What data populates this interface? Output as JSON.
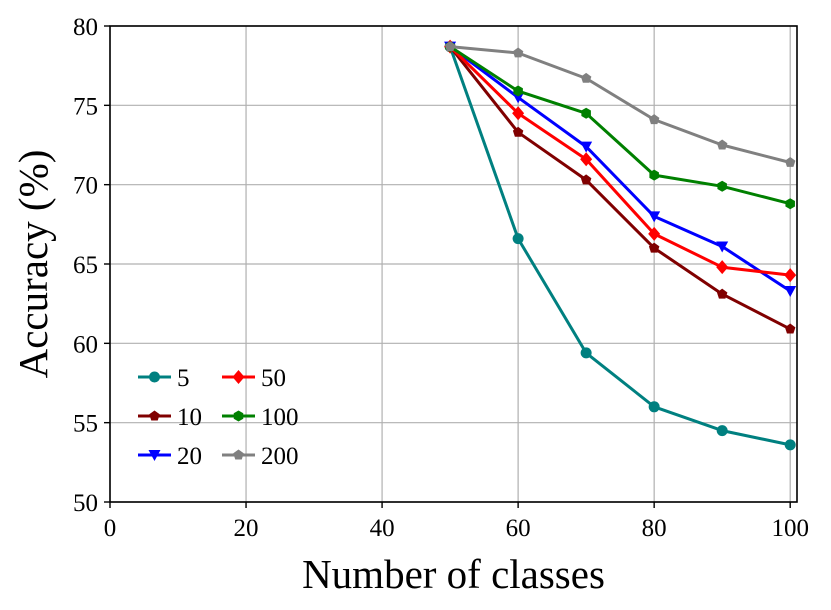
{
  "chart_data": {
    "type": "line",
    "title": "",
    "xlabel": "Number of classes",
    "ylabel": "Accuracy (%)",
    "xlim": [
      0,
      101
    ],
    "ylim": [
      50,
      80
    ],
    "xticks": [
      0,
      20,
      40,
      60,
      80,
      100
    ],
    "yticks": [
      50,
      55,
      60,
      65,
      70,
      75,
      80
    ],
    "grid": true,
    "legend_position": "lower-left",
    "legend_columns": 2,
    "x": [
      50,
      60,
      70,
      80,
      90,
      100
    ],
    "series": [
      {
        "name": "5",
        "color": "#008080",
        "marker": "circle",
        "values": [
          78.7,
          66.6,
          59.4,
          56.0,
          54.5,
          53.6
        ]
      },
      {
        "name": "10",
        "color": "#800000",
        "marker": "pentagon",
        "values": [
          78.7,
          73.3,
          70.3,
          66.0,
          63.1,
          60.9
        ]
      },
      {
        "name": "20",
        "color": "#0000ff",
        "marker": "triangle-down",
        "values": [
          78.7,
          75.5,
          72.4,
          68.0,
          66.1,
          63.3
        ]
      },
      {
        "name": "50",
        "color": "#ff0000",
        "marker": "diamond",
        "values": [
          78.7,
          74.5,
          71.6,
          66.9,
          64.8,
          64.3
        ]
      },
      {
        "name": "100",
        "color": "#008000",
        "marker": "hexagon",
        "values": [
          78.7,
          75.9,
          74.5,
          70.6,
          69.9,
          68.8
        ]
      },
      {
        "name": "200",
        "color": "#808080",
        "marker": "pentagon",
        "values": [
          78.7,
          78.3,
          76.7,
          74.1,
          72.5,
          71.4
        ]
      }
    ]
  }
}
